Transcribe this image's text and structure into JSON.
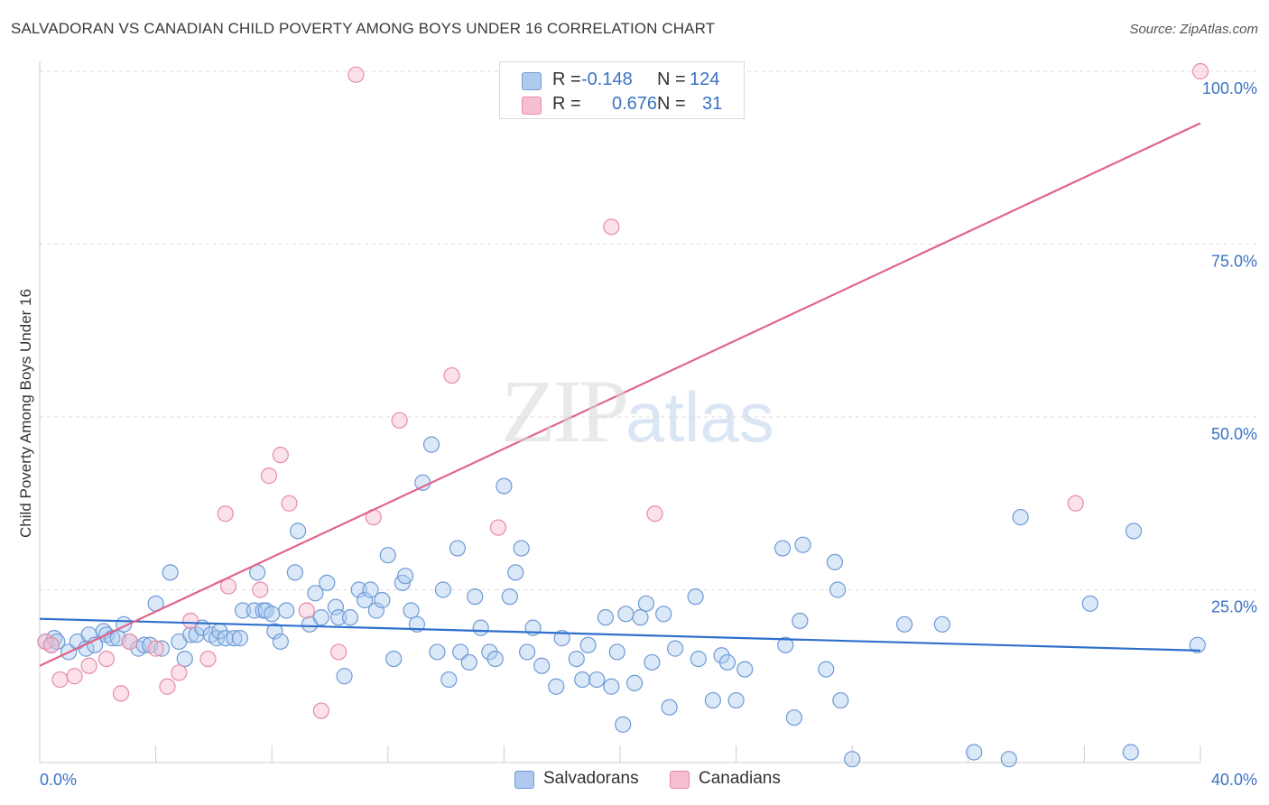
{
  "header": {
    "title": "SALVADORAN VS CANADIAN CHILD POVERTY AMONG BOYS UNDER 16 CORRELATION CHART",
    "source": "Source: ZipAtlas.com"
  },
  "legend": {
    "salvadorans": {
      "r_label": "R =",
      "r_value": "-0.148",
      "n_label": "N =",
      "n_value": "124"
    },
    "canadians": {
      "r_label": "R =",
      "r_value": "0.676",
      "n_label": "N =",
      "n_value": "31"
    }
  },
  "bottom_legend": {
    "salvadorans": "Salvadorans",
    "canadians": "Canadians"
  },
  "watermark": {
    "zip": "ZIP",
    "atlas": "atlas"
  },
  "colors": {
    "salvadorans_fill": "#aecbef",
    "salvadorans_stroke": "#6f9ad6",
    "salvadorans_line": "#2f6fcc",
    "canadians_fill": "#f6bfd0",
    "canadians_stroke": "#e88aa8",
    "canadians_line": "#e0648c",
    "grid": "#dddddd",
    "tick_text": "#3b73c4"
  },
  "chart_data": {
    "type": "scatter",
    "ylabel": "Child Poverty Among Boys Under 16",
    "xlabel": "",
    "xlim": [
      0,
      40
    ],
    "ylim": [
      0,
      100
    ],
    "x_tick_labels": [
      {
        "value": 0,
        "label": "0.0%"
      },
      {
        "value": 40,
        "label": "40.0%"
      }
    ],
    "y_tick_labels": [
      {
        "value": 25,
        "label": "25.0%"
      },
      {
        "value": 50,
        "label": "50.0%"
      },
      {
        "value": 75,
        "label": "75.0%"
      },
      {
        "value": 100,
        "label": "100.0%"
      }
    ],
    "grid": true,
    "series": [
      {
        "name": "Salvadorans",
        "trend": {
          "x": [
            0,
            40
          ],
          "y": [
            20.8,
            16.2
          ]
        },
        "points": [
          [
            0.2,
            17.5
          ],
          [
            0.4,
            17.0
          ],
          [
            0.5,
            18.0
          ],
          [
            0.6,
            17.5
          ],
          [
            1.0,
            16.0
          ],
          [
            1.3,
            17.5
          ],
          [
            1.6,
            16.5
          ],
          [
            1.7,
            18.5
          ],
          [
            1.9,
            17.0
          ],
          [
            2.2,
            19.0
          ],
          [
            2.3,
            18.5
          ],
          [
            2.5,
            18.0
          ],
          [
            2.7,
            18.0
          ],
          [
            2.9,
            20.0
          ],
          [
            3.1,
            17.5
          ],
          [
            3.4,
            16.5
          ],
          [
            3.6,
            17.0
          ],
          [
            3.8,
            17.0
          ],
          [
            4.0,
            23.0
          ],
          [
            4.2,
            16.5
          ],
          [
            4.5,
            27.5
          ],
          [
            4.8,
            17.5
          ],
          [
            5.0,
            15.0
          ],
          [
            5.2,
            18.5
          ],
          [
            5.4,
            18.5
          ],
          [
            5.6,
            19.5
          ],
          [
            5.9,
            18.5
          ],
          [
            6.1,
            18.0
          ],
          [
            6.2,
            19.0
          ],
          [
            6.4,
            18.0
          ],
          [
            6.7,
            18.0
          ],
          [
            6.9,
            18.0
          ],
          [
            7.0,
            22.0
          ],
          [
            7.4,
            22.0
          ],
          [
            7.5,
            27.5
          ],
          [
            7.7,
            22.0
          ],
          [
            7.8,
            22.0
          ],
          [
            8.0,
            21.5
          ],
          [
            8.1,
            19.0
          ],
          [
            8.3,
            17.5
          ],
          [
            8.5,
            22.0
          ],
          [
            8.8,
            27.5
          ],
          [
            8.9,
            33.5
          ],
          [
            9.3,
            20.0
          ],
          [
            9.5,
            24.5
          ],
          [
            9.7,
            21.0
          ],
          [
            9.9,
            26.0
          ],
          [
            10.2,
            22.5
          ],
          [
            10.3,
            21.0
          ],
          [
            10.5,
            12.5
          ],
          [
            10.7,
            21.0
          ],
          [
            11.0,
            25.0
          ],
          [
            11.2,
            23.5
          ],
          [
            11.4,
            25.0
          ],
          [
            11.6,
            22.0
          ],
          [
            11.8,
            23.5
          ],
          [
            12.0,
            30.0
          ],
          [
            12.2,
            15.0
          ],
          [
            12.5,
            26.0
          ],
          [
            12.6,
            27.0
          ],
          [
            12.8,
            22.0
          ],
          [
            13.0,
            20.0
          ],
          [
            13.2,
            40.5
          ],
          [
            13.5,
            46.0
          ],
          [
            13.7,
            16.0
          ],
          [
            13.9,
            25.0
          ],
          [
            14.1,
            12.0
          ],
          [
            14.4,
            31.0
          ],
          [
            14.5,
            16.0
          ],
          [
            14.8,
            14.5
          ],
          [
            15.0,
            24.0
          ],
          [
            15.2,
            19.5
          ],
          [
            15.5,
            16.0
          ],
          [
            15.7,
            15.0
          ],
          [
            16.0,
            40.0
          ],
          [
            16.2,
            24.0
          ],
          [
            16.4,
            27.5
          ],
          [
            16.6,
            31.0
          ],
          [
            16.8,
            16.0
          ],
          [
            17.0,
            19.5
          ],
          [
            17.3,
            14.0
          ],
          [
            17.8,
            11.0
          ],
          [
            18.0,
            18.0
          ],
          [
            18.5,
            15.0
          ],
          [
            18.7,
            12.0
          ],
          [
            18.9,
            17.0
          ],
          [
            19.2,
            12.0
          ],
          [
            19.5,
            21.0
          ],
          [
            19.7,
            11.0
          ],
          [
            19.9,
            16.0
          ],
          [
            20.1,
            5.5
          ],
          [
            20.2,
            21.5
          ],
          [
            20.5,
            11.5
          ],
          [
            20.7,
            21.0
          ],
          [
            20.9,
            23.0
          ],
          [
            21.1,
            14.5
          ],
          [
            21.5,
            21.5
          ],
          [
            21.7,
            8.0
          ],
          [
            21.9,
            16.5
          ],
          [
            22.6,
            24.0
          ],
          [
            22.7,
            15.0
          ],
          [
            23.2,
            9.0
          ],
          [
            23.5,
            15.5
          ],
          [
            23.7,
            14.5
          ],
          [
            24.0,
            9.0
          ],
          [
            24.3,
            13.5
          ],
          [
            25.6,
            31.0
          ],
          [
            25.7,
            17.0
          ],
          [
            26.0,
            6.5
          ],
          [
            26.2,
            20.5
          ],
          [
            26.3,
            31.5
          ],
          [
            27.1,
            13.5
          ],
          [
            27.4,
            29.0
          ],
          [
            27.5,
            25.0
          ],
          [
            27.6,
            9.0
          ],
          [
            28.0,
            0.5
          ],
          [
            29.8,
            20.0
          ],
          [
            31.1,
            20.0
          ],
          [
            32.2,
            1.5
          ],
          [
            33.4,
            0.5
          ],
          [
            33.8,
            35.5
          ],
          [
            36.2,
            23.0
          ],
          [
            37.6,
            1.5
          ],
          [
            37.7,
            33.5
          ],
          [
            39.9,
            17.0
          ]
        ]
      },
      {
        "name": "Canadians",
        "trend": {
          "x": [
            0,
            40
          ],
          "y": [
            14.0,
            92.5
          ]
        },
        "points": [
          [
            0.2,
            17.5
          ],
          [
            0.4,
            17.0
          ],
          [
            0.7,
            12.0
          ],
          [
            1.2,
            12.5
          ],
          [
            1.7,
            14.0
          ],
          [
            2.3,
            15.0
          ],
          [
            2.8,
            10.0
          ],
          [
            3.1,
            17.5
          ],
          [
            4.0,
            16.5
          ],
          [
            4.4,
            11.0
          ],
          [
            4.8,
            13.0
          ],
          [
            5.2,
            20.5
          ],
          [
            5.8,
            15.0
          ],
          [
            6.4,
            36.0
          ],
          [
            6.5,
            25.5
          ],
          [
            7.6,
            25.0
          ],
          [
            7.9,
            41.5
          ],
          [
            8.3,
            44.5
          ],
          [
            8.6,
            37.5
          ],
          [
            9.2,
            22.0
          ],
          [
            9.7,
            7.5
          ],
          [
            10.3,
            16.0
          ],
          [
            10.9,
            99.5
          ],
          [
            11.5,
            35.5
          ],
          [
            12.4,
            49.5
          ],
          [
            14.2,
            56.0
          ],
          [
            15.8,
            34.0
          ],
          [
            19.7,
            77.5
          ],
          [
            21.2,
            36.0
          ],
          [
            35.7,
            37.5
          ],
          [
            40.0,
            100.0
          ]
        ]
      }
    ]
  }
}
